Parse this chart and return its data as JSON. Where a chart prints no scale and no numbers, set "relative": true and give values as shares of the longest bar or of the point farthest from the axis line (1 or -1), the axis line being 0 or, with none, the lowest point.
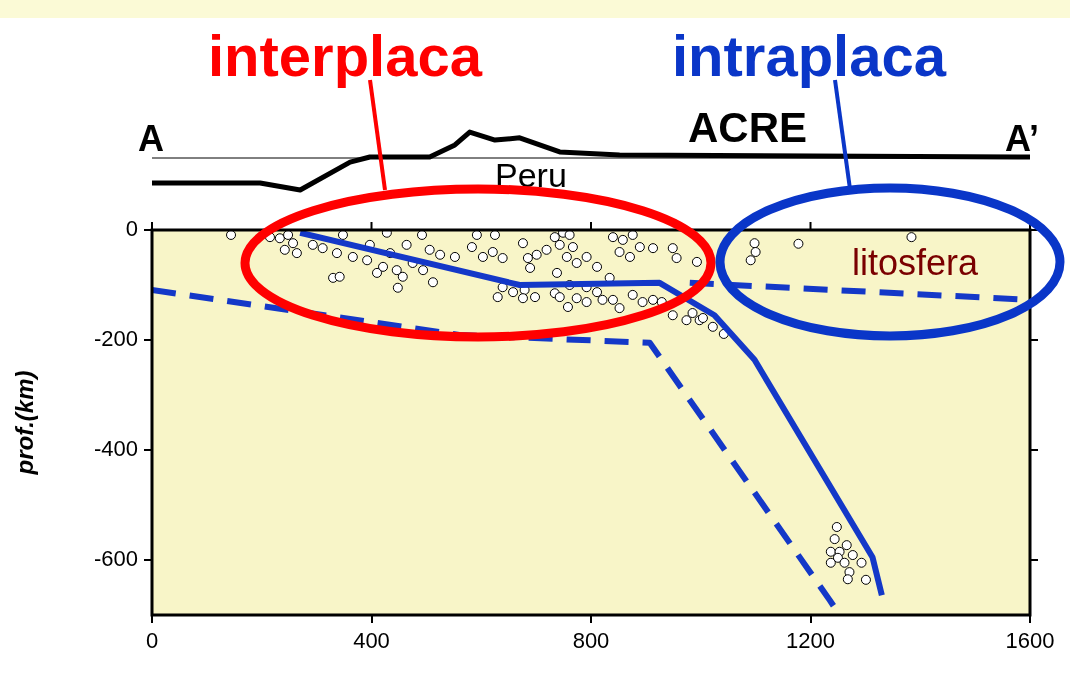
{
  "chart_data": [
    {
      "type": "line",
      "relative": true,
      "tick_labels": false,
      "xlim": [
        0,
        1600
      ],
      "x": [
        0,
        197,
        270,
        361,
        397,
        506,
        552,
        579,
        625,
        670,
        743,
        852,
        1600
      ],
      "series": [
        {
          "color": "#000000",
          "values": [
            -0.78,
            -0.78,
            -1,
            -0.13,
            0.03,
            0.03,
            0.41,
            0.81,
            0.56,
            0.63,
            0.19,
            0.09,
            0.03
          ]
        }
      ],
      "annotations": [
        "A",
        "A’",
        "ACRE",
        "Peru"
      ]
    },
    {
      "type": "scatter",
      "ylabel": "prof.(km)",
      "xlim": [
        0,
        1600
      ],
      "ylim": [
        -700,
        0
      ],
      "xticks": [
        0,
        400,
        800,
        1200,
        1600
      ],
      "yticks": [
        0,
        -200,
        -400,
        -600
      ],
      "grid": false,
      "legend": false,
      "annotations": [
        "interplaca",
        "intraplaca",
        "litosfera"
      ],
      "series": [
        {
          "type": "scatter",
          "color": "#ffffff",
          "marker": "circle",
          "x": [
            144,
            215,
            233,
            248,
            257,
            242,
            264,
            293,
            311,
            337,
            348,
            366,
            392,
            397,
            421,
            434,
            446,
            464,
            475,
            448,
            330,
            342,
            428,
            492,
            494,
            512,
            506,
            525,
            410,
            457,
            592,
            625,
            583,
            603,
            621,
            639,
            552,
            676,
            685,
            689,
            701,
            719,
            734,
            749,
            761,
            743,
            767,
            756,
            774,
            738,
            792,
            811,
            840,
            858,
            876,
            852,
            889,
            871,
            913,
            949,
            956,
            993,
            630,
            639,
            658,
            679,
            676,
            698,
            734,
            743,
            758,
            774,
            792,
            811,
            821,
            840,
            852,
            834,
            876,
            894,
            913,
            929,
            949,
            974,
            985,
            998,
            1022,
            761,
            792,
            1098,
            1100,
            1091,
            1178,
            1384,
            1042,
            1004,
            1248,
            1244,
            1266,
            1237,
            1253,
            1277,
            1250,
            1237,
            1262,
            1293,
            1271,
            1268,
            1301
          ],
          "values": [
            -9,
            -13,
            -15,
            -9,
            -24,
            -36,
            -42,
            -27,
            -33,
            -42,
            -9,
            -49,
            -55,
            -27,
            -67,
            -42,
            -73,
            -27,
            -60,
            -105,
            -87,
            -85,
            -5,
            -9,
            -73,
            -95,
            -36,
            -45,
            -78,
            -85,
            -9,
            -9,
            -31,
            -49,
            -40,
            -51,
            -49,
            -24,
            -51,
            -69,
            -45,
            -36,
            -13,
            -5,
            -9,
            -27,
            -31,
            -49,
            -60,
            -78,
            -49,
            -67,
            -13,
            -18,
            -9,
            -40,
            -31,
            -49,
            -33,
            -33,
            -51,
            -58,
            -122,
            -104,
            -113,
            -109,
            -124,
            -122,
            -115,
            -122,
            -140,
            -124,
            -131,
            -113,
            -127,
            -127,
            -142,
            -87,
            -118,
            -131,
            -127,
            -131,
            -155,
            -164,
            -151,
            -164,
            -176,
            -100,
            -104,
            -24,
            -40,
            -55,
            -25,
            -13,
            -189,
            -160,
            -540,
            -562,
            -573,
            -585,
            -585,
            -591,
            -596,
            -605,
            -605,
            -605,
            -622,
            -635,
            -636
          ]
        },
        {
          "type": "line",
          "color": "#1438c8",
          "line_style": "solid",
          "x": [
            270,
            670,
            925,
            1025,
            1098,
            1313,
            1330
          ],
          "values": [
            -5,
            -100,
            -96,
            -155,
            -236,
            -595,
            -664
          ]
        },
        {
          "type": "line",
          "color": "#1438c8",
          "line_style": "dashed",
          "x": [
            0,
            560,
            907,
            1235,
            1253
          ],
          "values": [
            -109,
            -191,
            -205,
            -673,
            -700
          ]
        },
        {
          "type": "line",
          "color": "#1438c8",
          "line_style": "dashed",
          "x": [
            980,
            1600
          ],
          "values": [
            -96,
            -127
          ]
        }
      ]
    }
  ]
}
